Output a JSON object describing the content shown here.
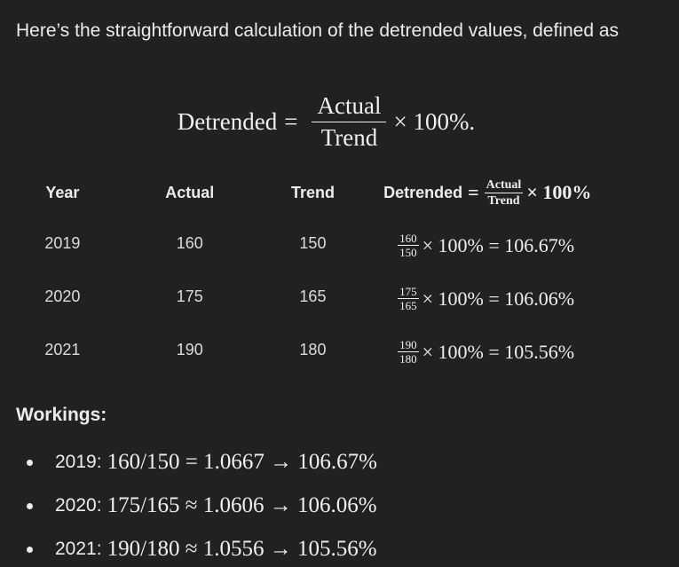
{
  "intro": "Here’s the straightforward calculation of the detrended values, defined as",
  "formula": {
    "lhs": "Detrended",
    "eq": "=",
    "numerator": "Actual",
    "denominator": "Trend",
    "rhs": "× 100%."
  },
  "table": {
    "headers": {
      "year": "Year",
      "actual": "Actual",
      "trend": "Trend",
      "detrended_label": "Detrended",
      "detrended_eq": "=",
      "detrended_num": "Actual",
      "detrended_den": "Trend",
      "detrended_tail": "× 100%"
    },
    "rows": [
      {
        "year": "2019",
        "actual": "160",
        "trend": "150",
        "num": "160",
        "den": "150",
        "tail": "× 100% = 106.67%"
      },
      {
        "year": "2020",
        "actual": "175",
        "trend": "165",
        "num": "175",
        "den": "165",
        "tail": "× 100% = 106.06%"
      },
      {
        "year": "2021",
        "actual": "190",
        "trend": "180",
        "num": "190",
        "den": "180",
        "tail": "× 100% = 105.56%"
      }
    ]
  },
  "workings": {
    "title": "Workings:",
    "items": [
      {
        "label": "2019:",
        "expr": "160/150 = 1.0667 → 106.67%"
      },
      {
        "label": "2020:",
        "expr": "175/165 ≈ 1.0606 → 106.06%"
      },
      {
        "label": "2021:",
        "expr": "190/180 ≈ 1.0556 → 105.56%"
      }
    ]
  }
}
